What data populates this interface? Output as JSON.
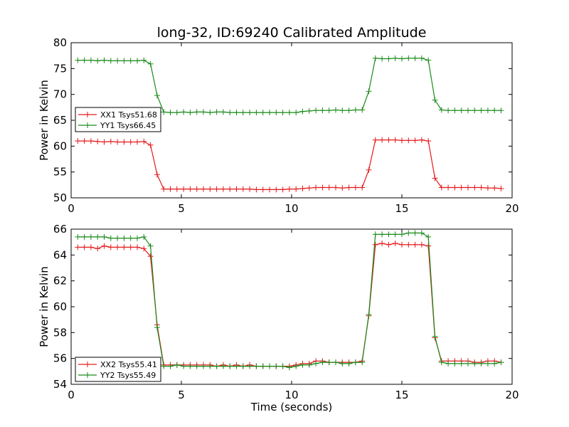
{
  "colors": {
    "xx": "#e41a1c",
    "yy": "#1a8a1a",
    "frame": "#000000"
  },
  "chart_data": [
    {
      "type": "line",
      "title": "long-32, ID:69240 Calibrated Amplitude",
      "xlabel": "",
      "ylabel": "Power in Kelvin",
      "xlim": [
        0,
        20
      ],
      "ylim": [
        50,
        80
      ],
      "xticks": [
        "0",
        "5",
        "10",
        "15",
        "20"
      ],
      "yticks": [
        "50",
        "55",
        "60",
        "65",
        "70",
        "75",
        "80"
      ],
      "xtick_values": [
        0,
        5,
        10,
        15,
        20
      ],
      "ytick_values": [
        50,
        55,
        60,
        65,
        70,
        75,
        80
      ],
      "grid": false,
      "legend_position": "center-left",
      "series": [
        {
          "name": "XX1 Tsys51.68",
          "color_key": "xx",
          "x": [
            0.3,
            0.6,
            0.9,
            1.2,
            1.5,
            1.8,
            2.1,
            2.4,
            2.7,
            3.0,
            3.3,
            3.6,
            3.9,
            4.2,
            4.5,
            4.8,
            5.1,
            5.4,
            5.7,
            6.0,
            6.3,
            6.6,
            6.9,
            7.2,
            7.5,
            7.8,
            8.1,
            8.4,
            8.7,
            9.0,
            9.3,
            9.6,
            9.9,
            10.2,
            10.5,
            10.8,
            11.1,
            11.4,
            11.7,
            12.0,
            12.3,
            12.6,
            12.9,
            13.2,
            13.5,
            13.8,
            14.1,
            14.4,
            14.7,
            15.0,
            15.3,
            15.6,
            15.9,
            16.2,
            16.5,
            16.8,
            17.1,
            17.4,
            17.7,
            18.0,
            18.3,
            18.6,
            18.9,
            19.2,
            19.5
          ],
          "y": [
            61.0,
            61.0,
            61.0,
            60.9,
            60.8,
            60.9,
            60.8,
            60.8,
            60.8,
            60.8,
            60.9,
            60.2,
            54.5,
            51.7,
            51.7,
            51.7,
            51.7,
            51.7,
            51.7,
            51.7,
            51.7,
            51.7,
            51.7,
            51.7,
            51.7,
            51.7,
            51.7,
            51.6,
            51.6,
            51.6,
            51.6,
            51.6,
            51.7,
            51.7,
            51.8,
            51.9,
            52.0,
            52.0,
            52.0,
            52.0,
            51.9,
            52.0,
            52.0,
            52.0,
            55.4,
            61.2,
            61.2,
            61.2,
            61.2,
            61.1,
            61.1,
            61.1,
            61.2,
            61.0,
            53.8,
            52.0,
            52.0,
            52.0,
            52.0,
            52.0,
            52.0,
            52.0,
            51.9,
            51.9,
            51.8
          ]
        },
        {
          "name": "YY1 Tsys66.45",
          "color_key": "yy",
          "x": [
            0.3,
            0.6,
            0.9,
            1.2,
            1.5,
            1.8,
            2.1,
            2.4,
            2.7,
            3.0,
            3.3,
            3.6,
            3.9,
            4.2,
            4.5,
            4.8,
            5.1,
            5.4,
            5.7,
            6.0,
            6.3,
            6.6,
            6.9,
            7.2,
            7.5,
            7.8,
            8.1,
            8.4,
            8.7,
            9.0,
            9.3,
            9.6,
            9.9,
            10.2,
            10.5,
            10.8,
            11.1,
            11.4,
            11.7,
            12.0,
            12.3,
            12.6,
            12.9,
            13.2,
            13.5,
            13.8,
            14.1,
            14.4,
            14.7,
            15.0,
            15.3,
            15.6,
            15.9,
            16.2,
            16.5,
            16.8,
            17.1,
            17.4,
            17.7,
            18.0,
            18.3,
            18.6,
            18.9,
            19.2,
            19.5
          ],
          "y": [
            76.6,
            76.6,
            76.6,
            76.5,
            76.6,
            76.5,
            76.5,
            76.5,
            76.5,
            76.5,
            76.6,
            75.9,
            69.8,
            66.6,
            66.5,
            66.5,
            66.6,
            66.5,
            66.6,
            66.6,
            66.5,
            66.6,
            66.6,
            66.5,
            66.5,
            66.5,
            66.5,
            66.5,
            66.5,
            66.5,
            66.5,
            66.5,
            66.5,
            66.5,
            66.7,
            66.8,
            66.9,
            66.9,
            66.9,
            67.0,
            66.9,
            66.9,
            67.0,
            67.0,
            70.6,
            77.0,
            76.9,
            76.9,
            77.0,
            76.9,
            77.0,
            77.0,
            77.0,
            76.6,
            68.9,
            67.0,
            66.9,
            66.9,
            66.9,
            66.9,
            66.9,
            66.9,
            66.9,
            66.9,
            66.9
          ]
        }
      ]
    },
    {
      "type": "line",
      "title": "",
      "xlabel": "Time (seconds)",
      "ylabel": "Power in Kelvin",
      "xlim": [
        0,
        20
      ],
      "ylim": [
        54,
        66
      ],
      "xticks": [
        "0",
        "5",
        "10",
        "15",
        "20"
      ],
      "yticks": [
        "54",
        "56",
        "58",
        "60",
        "62",
        "64",
        "66"
      ],
      "xtick_values": [
        0,
        5,
        10,
        15,
        20
      ],
      "ytick_values": [
        54,
        56,
        58,
        60,
        62,
        64,
        66
      ],
      "grid": false,
      "legend_position": "lower-left",
      "series": [
        {
          "name": "XX2 Tsys55.41",
          "color_key": "xx",
          "x": [
            0.3,
            0.6,
            0.9,
            1.2,
            1.5,
            1.8,
            2.1,
            2.4,
            2.7,
            3.0,
            3.3,
            3.6,
            3.9,
            4.2,
            4.5,
            4.8,
            5.1,
            5.4,
            5.7,
            6.0,
            6.3,
            6.6,
            6.9,
            7.2,
            7.5,
            7.8,
            8.1,
            8.4,
            8.7,
            9.0,
            9.3,
            9.6,
            9.9,
            10.2,
            10.5,
            10.8,
            11.1,
            11.4,
            11.7,
            12.0,
            12.3,
            12.6,
            12.9,
            13.2,
            13.5,
            13.8,
            14.1,
            14.4,
            14.7,
            15.0,
            15.3,
            15.6,
            15.9,
            16.2,
            16.5,
            16.8,
            17.1,
            17.4,
            17.7,
            18.0,
            18.3,
            18.6,
            18.9,
            19.2,
            19.5
          ],
          "y": [
            64.6,
            64.6,
            64.6,
            64.5,
            64.7,
            64.6,
            64.6,
            64.6,
            64.6,
            64.6,
            64.5,
            63.9,
            58.6,
            55.5,
            55.5,
            55.5,
            55.5,
            55.5,
            55.5,
            55.5,
            55.5,
            55.4,
            55.5,
            55.4,
            55.5,
            55.4,
            55.5,
            55.4,
            55.4,
            55.4,
            55.4,
            55.4,
            55.4,
            55.5,
            55.6,
            55.6,
            55.8,
            55.8,
            55.7,
            55.7,
            55.7,
            55.7,
            55.7,
            55.8,
            59.3,
            64.8,
            64.9,
            64.8,
            64.9,
            64.8,
            64.8,
            64.8,
            64.8,
            64.7,
            57.6,
            55.8,
            55.8,
            55.8,
            55.8,
            55.8,
            55.7,
            55.7,
            55.8,
            55.8,
            55.7
          ]
        },
        {
          "name": "YY2 Tsys55.49",
          "color_key": "yy",
          "x": [
            0.3,
            0.6,
            0.9,
            1.2,
            1.5,
            1.8,
            2.1,
            2.4,
            2.7,
            3.0,
            3.3,
            3.6,
            3.9,
            4.2,
            4.5,
            4.8,
            5.1,
            5.4,
            5.7,
            6.0,
            6.3,
            6.6,
            6.9,
            7.2,
            7.5,
            7.8,
            8.1,
            8.4,
            8.7,
            9.0,
            9.3,
            9.6,
            9.9,
            10.2,
            10.5,
            10.8,
            11.1,
            11.4,
            11.7,
            12.0,
            12.3,
            12.6,
            12.9,
            13.2,
            13.5,
            13.8,
            14.1,
            14.4,
            14.7,
            15.0,
            15.3,
            15.6,
            15.9,
            16.2,
            16.5,
            16.8,
            17.1,
            17.4,
            17.7,
            18.0,
            18.3,
            18.6,
            18.9,
            19.2,
            19.5
          ],
          "y": [
            65.4,
            65.4,
            65.4,
            65.4,
            65.4,
            65.3,
            65.3,
            65.3,
            65.3,
            65.3,
            65.4,
            64.7,
            58.4,
            55.4,
            55.4,
            55.5,
            55.4,
            55.4,
            55.4,
            55.4,
            55.4,
            55.4,
            55.4,
            55.4,
            55.4,
            55.4,
            55.4,
            55.4,
            55.4,
            55.4,
            55.4,
            55.4,
            55.3,
            55.4,
            55.5,
            55.5,
            55.6,
            55.7,
            55.7,
            55.7,
            55.6,
            55.6,
            55.7,
            55.7,
            59.4,
            65.6,
            65.6,
            65.6,
            65.6,
            65.6,
            65.7,
            65.7,
            65.7,
            65.4,
            57.7,
            55.7,
            55.6,
            55.6,
            55.6,
            55.6,
            55.6,
            55.6,
            55.6,
            55.6,
            55.7
          ]
        }
      ]
    }
  ]
}
